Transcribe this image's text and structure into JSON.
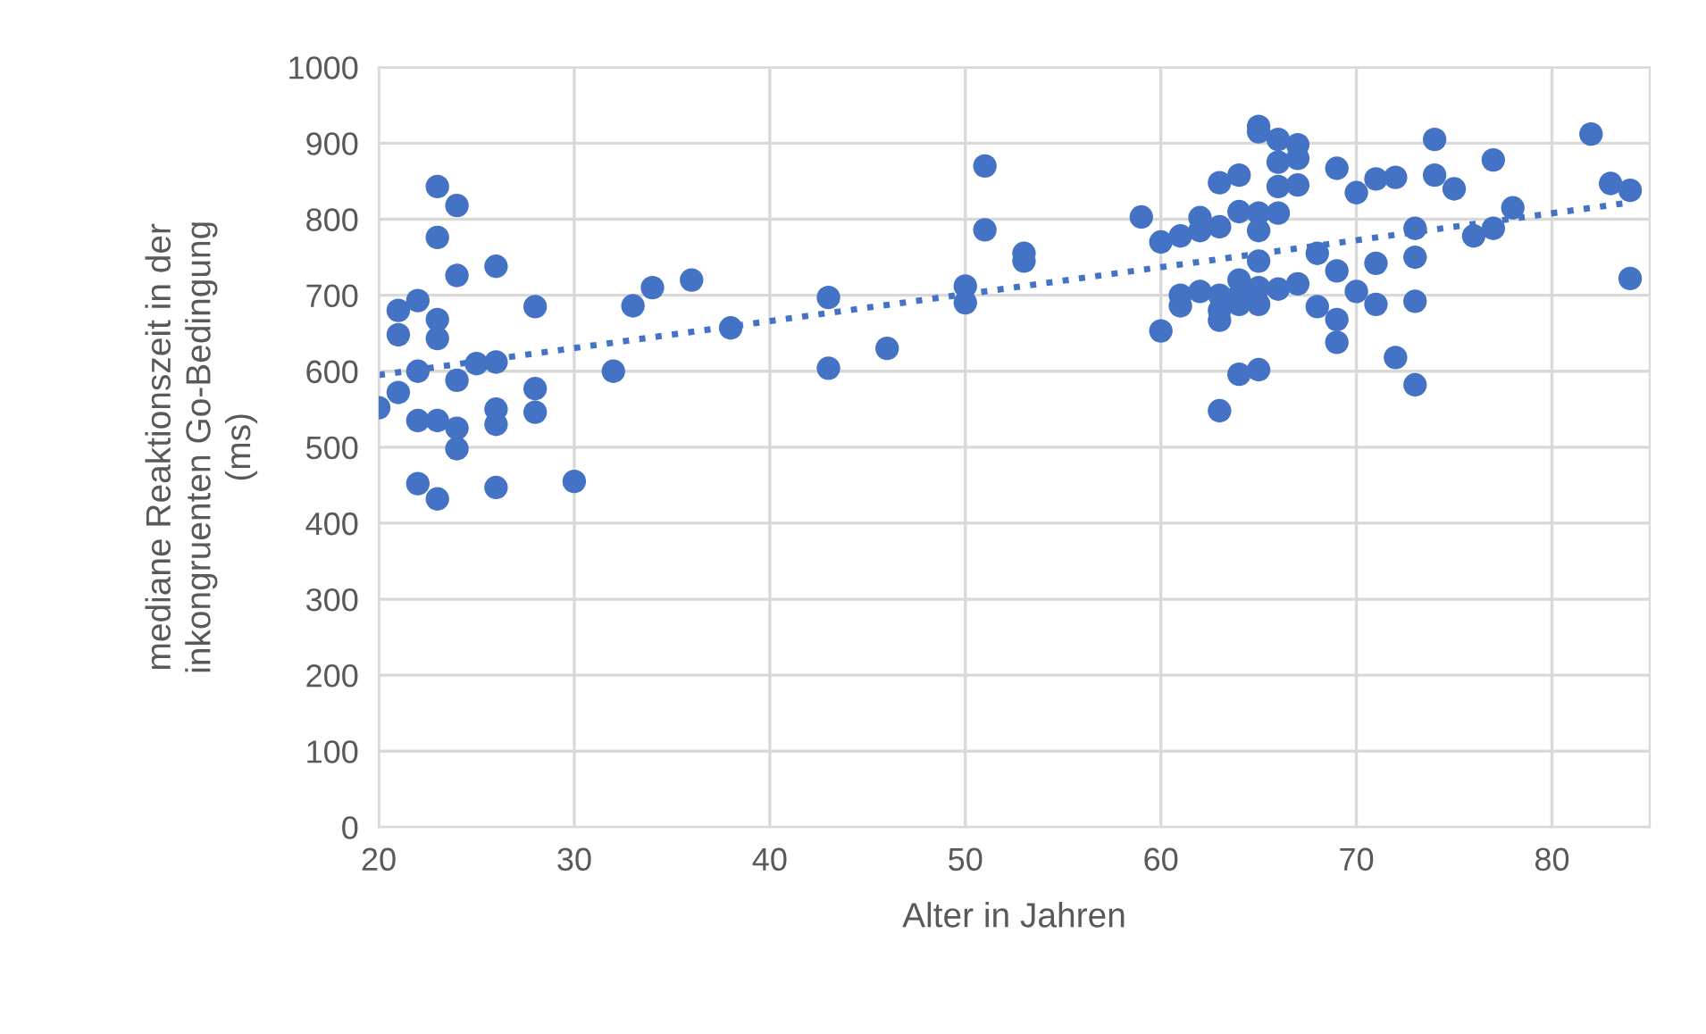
{
  "chart_data": {
    "type": "scatter",
    "xlabel": "Alter in Jahren",
    "ylabel": "mediane Reaktionszeit in der\ninkongruenten Go-Bedingung\n(ms)",
    "xlim": [
      20,
      85
    ],
    "ylim": [
      0,
      1000
    ],
    "xticks": [
      20,
      30,
      40,
      50,
      60,
      70,
      80
    ],
    "yticks": [
      0,
      100,
      200,
      300,
      400,
      500,
      600,
      700,
      800,
      900,
      1000
    ],
    "grid": true,
    "legend": false,
    "series": [
      {
        "color": "#4472c4",
        "marker": "circle",
        "x": [
          20,
          21,
          21,
          21,
          22,
          22,
          22,
          22,
          23,
          23,
          23,
          23,
          23,
          23,
          24,
          24,
          24,
          24,
          24,
          25,
          26,
          26,
          26,
          26,
          26,
          28,
          28,
          28,
          30,
          32,
          33,
          34,
          36,
          38,
          43,
          43,
          46,
          50,
          50,
          51,
          51,
          53,
          53,
          59,
          60,
          60,
          61,
          61,
          61,
          62,
          62,
          62,
          63,
          63,
          63,
          63,
          63,
          63,
          64,
          64,
          64,
          64,
          64,
          64,
          65,
          65,
          65,
          65,
          65,
          65,
          65,
          65,
          66,
          66,
          66,
          66,
          66,
          67,
          67,
          67,
          67,
          68,
          68,
          69,
          69,
          69,
          69,
          70,
          70,
          71,
          71,
          71,
          72,
          72,
          73,
          73,
          73,
          73,
          74,
          74,
          75,
          76,
          77,
          77,
          78,
          82,
          83,
          84,
          84
        ],
        "values": [
          552,
          680,
          648,
          572,
          693,
          600,
          535,
          452,
          843,
          776,
          668,
          643,
          535,
          432,
          818,
          726,
          588,
          525,
          498,
          610,
          738,
          612,
          550,
          530,
          447,
          685,
          577,
          546,
          455,
          600,
          686,
          710,
          720,
          657,
          697,
          604,
          630,
          712,
          690,
          870,
          786,
          755,
          745,
          803,
          770,
          653,
          778,
          700,
          686,
          802,
          785,
          705,
          848,
          790,
          700,
          680,
          667,
          548,
          858,
          810,
          720,
          700,
          688,
          596,
          922,
          915,
          808,
          785,
          745,
          710,
          688,
          602,
          905,
          875,
          843,
          808,
          708,
          898,
          880,
          845,
          715,
          755,
          685,
          867,
          732,
          668,
          638,
          835,
          705,
          853,
          742,
          688,
          855,
          618,
          788,
          750,
          692,
          582,
          905,
          858,
          840,
          778,
          878,
          788,
          815,
          912,
          847,
          838,
          722
        ]
      },
      {
        "type": "line",
        "color": "#4472c4",
        "line_style": "dotted",
        "marker": "none",
        "x": [
          20,
          84
        ],
        "values": [
          595,
          822
        ]
      }
    ]
  }
}
